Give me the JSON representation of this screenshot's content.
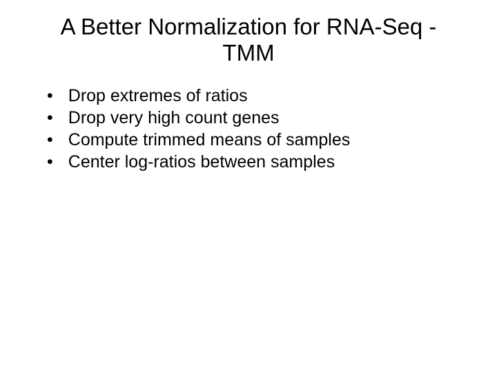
{
  "slide": {
    "title": "A Better Normalization for RNA-Seq - TMM",
    "title_fontsize": 33,
    "title_color": "#000000",
    "bullets": [
      "Drop extremes of ratios",
      "Drop very high count genes",
      "Compute trimmed means of samples",
      "Center log-ratios between samples"
    ],
    "bullet_fontsize": 25,
    "bullet_color": "#000000",
    "bullet_marker": "•",
    "background_color": "#ffffff"
  }
}
